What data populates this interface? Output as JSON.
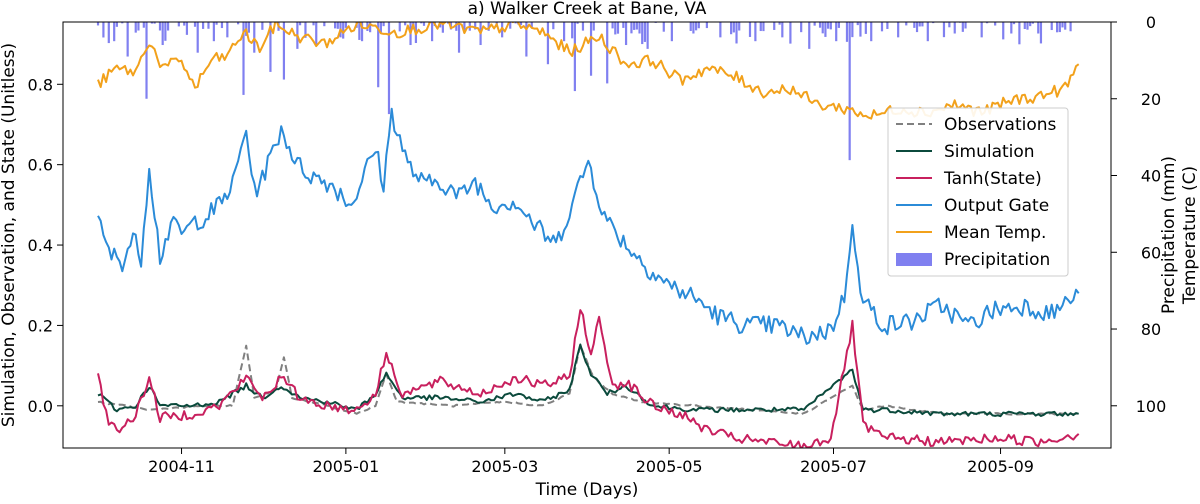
{
  "chart_data": {
    "type": "line",
    "title": "a) Walker Creek at Bane, VA",
    "xlabel": "Time (Days)",
    "ylabel_left": "Simulation, Observation, and State (Unitless)",
    "ylabel_right_1": "Precipitation (mm)",
    "ylabel_right_2": "Temperature (C)",
    "x_start": "2004-10-01",
    "x_end": "2005-09-30",
    "x_range": [
      "2004-09-18",
      "2005-10-12"
    ],
    "x_ticks": [
      {
        "date": "2004-11-01",
        "label": "2004-11"
      },
      {
        "date": "2005-01-01",
        "label": "2005-01"
      },
      {
        "date": "2005-03-01",
        "label": "2005-03"
      },
      {
        "date": "2005-05-01",
        "label": "2005-05"
      },
      {
        "date": "2005-07-01",
        "label": "2005-07"
      },
      {
        "date": "2005-09-01",
        "label": "2005-09"
      }
    ],
    "ylim_left": [
      -0.105,
      0.955
    ],
    "y_ticks_left": [
      0.0,
      0.2,
      0.4,
      0.6,
      0.8
    ],
    "y_tick_labels_left": [
      "0.0",
      "0.2",
      "0.4",
      "0.6",
      "0.8"
    ],
    "ylim_right": [
      111,
      0
    ],
    "y_ticks_right": [
      0,
      20,
      40,
      60,
      80,
      100
    ],
    "y_tick_labels_right": [
      "0",
      "20",
      "40",
      "60",
      "80",
      "100"
    ],
    "legend_position": "right",
    "legend": [
      {
        "name": "Observations",
        "color": "#808080",
        "style": "dashed"
      },
      {
        "name": "Simulation",
        "color": "#0b4a3c",
        "style": "solid"
      },
      {
        "name": "Tanh(State)",
        "color": "#c8205e",
        "style": "solid"
      },
      {
        "name": "Output Gate",
        "color": "#2b8bd8",
        "style": "solid"
      },
      {
        "name": "Mean Temp.",
        "color": "#f2a11b",
        "style": "solid"
      },
      {
        "name": "Precipitation",
        "color": "#8080f0",
        "style": "bar"
      }
    ],
    "series": [
      {
        "name": "Output Gate",
        "color": "#2b8bd8",
        "axis": "left",
        "points": [
          [
            "2004-10-01",
            0.46
          ],
          [
            "2004-10-05",
            0.38
          ],
          [
            "2004-10-10",
            0.36
          ],
          [
            "2004-10-14",
            0.42
          ],
          [
            "2004-10-17",
            0.37
          ],
          [
            "2004-10-20",
            0.6
          ],
          [
            "2004-10-24",
            0.37
          ],
          [
            "2004-10-28",
            0.45
          ],
          [
            "2004-11-02",
            0.43
          ],
          [
            "2004-11-06",
            0.46
          ],
          [
            "2004-11-10",
            0.47
          ],
          [
            "2004-11-15",
            0.5
          ],
          [
            "2004-11-20",
            0.55
          ],
          [
            "2004-11-25",
            0.69
          ],
          [
            "2004-11-28",
            0.53
          ],
          [
            "2004-12-03",
            0.6
          ],
          [
            "2004-12-08",
            0.69
          ],
          [
            "2004-12-14",
            0.6
          ],
          [
            "2004-12-20",
            0.57
          ],
          [
            "2004-12-27",
            0.55
          ],
          [
            "2005-01-03",
            0.5
          ],
          [
            "2005-01-08",
            0.58
          ],
          [
            "2005-01-12",
            0.64
          ],
          [
            "2005-01-15",
            0.55
          ],
          [
            "2005-01-18",
            0.73
          ],
          [
            "2005-01-24",
            0.6
          ],
          [
            "2005-01-30",
            0.55
          ],
          [
            "2005-02-05",
            0.56
          ],
          [
            "2005-02-12",
            0.52
          ],
          [
            "2005-02-18",
            0.56
          ],
          [
            "2005-02-24",
            0.5
          ],
          [
            "2005-03-05",
            0.51
          ],
          [
            "2005-03-12",
            0.45
          ],
          [
            "2005-03-20",
            0.4
          ],
          [
            "2005-03-28",
            0.54
          ],
          [
            "2005-04-01",
            0.61
          ],
          [
            "2005-04-07",
            0.47
          ],
          [
            "2005-04-14",
            0.41
          ],
          [
            "2005-04-22",
            0.35
          ],
          [
            "2005-05-01",
            0.3
          ],
          [
            "2005-05-10",
            0.27
          ],
          [
            "2005-05-20",
            0.22
          ],
          [
            "2005-05-30",
            0.2
          ],
          [
            "2005-06-10",
            0.2
          ],
          [
            "2005-06-20",
            0.17
          ],
          [
            "2005-06-30",
            0.19
          ],
          [
            "2005-07-05",
            0.27
          ],
          [
            "2005-07-08",
            0.47
          ],
          [
            "2005-07-11",
            0.27
          ],
          [
            "2005-07-20",
            0.2
          ],
          [
            "2005-07-30",
            0.21
          ],
          [
            "2005-08-10",
            0.25
          ],
          [
            "2005-08-20",
            0.2
          ],
          [
            "2005-08-30",
            0.24
          ],
          [
            "2005-09-10",
            0.25
          ],
          [
            "2005-09-20",
            0.23
          ],
          [
            "2005-09-30",
            0.28
          ]
        ]
      },
      {
        "name": "Mean Temp.",
        "color": "#f2a11b",
        "axis": "left",
        "points": [
          [
            "2004-10-01",
            0.8
          ],
          [
            "2004-10-08",
            0.84
          ],
          [
            "2004-10-15",
            0.83
          ],
          [
            "2004-10-20",
            0.91
          ],
          [
            "2004-10-25",
            0.84
          ],
          [
            "2004-11-01",
            0.86
          ],
          [
            "2004-11-06",
            0.79
          ],
          [
            "2004-11-12",
            0.86
          ],
          [
            "2004-11-18",
            0.87
          ],
          [
            "2004-11-24",
            0.93
          ],
          [
            "2004-11-30",
            0.89
          ],
          [
            "2004-12-06",
            0.95
          ],
          [
            "2004-12-14",
            0.92
          ],
          [
            "2004-12-24",
            0.9
          ],
          [
            "2005-01-05",
            0.95
          ],
          [
            "2005-01-20",
            0.93
          ],
          [
            "2005-02-05",
            0.95
          ],
          [
            "2005-02-20",
            0.93
          ],
          [
            "2005-03-05",
            0.95
          ],
          [
            "2005-03-15",
            0.93
          ],
          [
            "2005-03-25",
            0.88
          ],
          [
            "2005-04-05",
            0.92
          ],
          [
            "2005-04-15",
            0.85
          ],
          [
            "2005-04-25",
            0.86
          ],
          [
            "2005-05-05",
            0.81
          ],
          [
            "2005-05-15",
            0.84
          ],
          [
            "2005-05-25",
            0.82
          ],
          [
            "2005-06-05",
            0.78
          ],
          [
            "2005-06-15",
            0.79
          ],
          [
            "2005-06-25",
            0.75
          ],
          [
            "2005-07-05",
            0.74
          ],
          [
            "2005-07-15",
            0.72
          ],
          [
            "2005-07-25",
            0.74
          ],
          [
            "2005-08-05",
            0.73
          ],
          [
            "2005-08-15",
            0.75
          ],
          [
            "2005-08-25",
            0.73
          ],
          [
            "2005-09-05",
            0.76
          ],
          [
            "2005-09-15",
            0.77
          ],
          [
            "2005-09-25",
            0.79
          ],
          [
            "2005-09-30",
            0.85
          ]
        ]
      },
      {
        "name": "Observations",
        "color": "#808080",
        "axis": "left",
        "points": [
          [
            "2004-10-01",
            0.01
          ],
          [
            "2004-10-20",
            -0.01
          ],
          [
            "2004-11-10",
            0.0
          ],
          [
            "2004-11-20",
            0.0
          ],
          [
            "2004-11-25",
            0.15
          ],
          [
            "2004-11-28",
            0.02
          ],
          [
            "2004-12-06",
            0.04
          ],
          [
            "2004-12-09",
            0.12
          ],
          [
            "2004-12-12",
            0.02
          ],
          [
            "2004-12-25",
            0.0
          ],
          [
            "2005-01-05",
            -0.02
          ],
          [
            "2005-01-12",
            0.0
          ],
          [
            "2005-01-16",
            0.08
          ],
          [
            "2005-01-20",
            0.01
          ],
          [
            "2005-02-10",
            0.0
          ],
          [
            "2005-03-01",
            0.01
          ],
          [
            "2005-03-15",
            0.0
          ],
          [
            "2005-03-25",
            0.03
          ],
          [
            "2005-03-29",
            0.15
          ],
          [
            "2005-04-03",
            0.07
          ],
          [
            "2005-04-10",
            0.03
          ],
          [
            "2005-04-20",
            0.01
          ],
          [
            "2005-05-10",
            0.0
          ],
          [
            "2005-06-01",
            -0.01
          ],
          [
            "2005-06-20",
            -0.02
          ],
          [
            "2005-07-08",
            0.05
          ],
          [
            "2005-07-12",
            -0.01
          ],
          [
            "2005-07-20",
            0.0
          ],
          [
            "2005-08-10",
            -0.02
          ],
          [
            "2005-09-10",
            -0.02
          ],
          [
            "2005-09-30",
            -0.02
          ]
        ]
      },
      {
        "name": "Simulation",
        "color": "#0b4a3c",
        "axis": "left",
        "points": [
          [
            "2004-10-01",
            0.03
          ],
          [
            "2004-10-08",
            -0.01
          ],
          [
            "2004-10-15",
            0.0
          ],
          [
            "2004-10-20",
            0.05
          ],
          [
            "2004-10-24",
            0.0
          ],
          [
            "2004-11-05",
            0.0
          ],
          [
            "2004-11-15",
            0.01
          ],
          [
            "2004-11-25",
            0.05
          ],
          [
            "2004-12-01",
            0.02
          ],
          [
            "2004-12-08",
            0.05
          ],
          [
            "2004-12-15",
            0.02
          ],
          [
            "2004-12-25",
            0.01
          ],
          [
            "2005-01-05",
            -0.01
          ],
          [
            "2005-01-12",
            0.03
          ],
          [
            "2005-01-16",
            0.08
          ],
          [
            "2005-01-22",
            0.02
          ],
          [
            "2005-02-05",
            0.02
          ],
          [
            "2005-02-20",
            0.01
          ],
          [
            "2005-03-05",
            0.03
          ],
          [
            "2005-03-15",
            0.01
          ],
          [
            "2005-03-25",
            0.04
          ],
          [
            "2005-03-29",
            0.15
          ],
          [
            "2005-04-02",
            0.08
          ],
          [
            "2005-04-08",
            0.03
          ],
          [
            "2005-04-15",
            0.05
          ],
          [
            "2005-04-25",
            0.0
          ],
          [
            "2005-05-10",
            -0.01
          ],
          [
            "2005-06-01",
            -0.01
          ],
          [
            "2005-06-20",
            -0.01
          ],
          [
            "2005-07-08",
            0.09
          ],
          [
            "2005-07-12",
            -0.01
          ],
          [
            "2005-07-20",
            -0.01
          ],
          [
            "2005-08-10",
            -0.02
          ],
          [
            "2005-09-10",
            -0.02
          ],
          [
            "2005-09-30",
            -0.02
          ]
        ]
      },
      {
        "name": "Tanh(State)",
        "color": "#c8205e",
        "axis": "left",
        "points": [
          [
            "2004-10-01",
            0.07
          ],
          [
            "2004-10-05",
            -0.04
          ],
          [
            "2004-10-10",
            -0.06
          ],
          [
            "2004-10-15",
            -0.02
          ],
          [
            "2004-10-20",
            0.07
          ],
          [
            "2004-10-24",
            -0.03
          ],
          [
            "2004-11-05",
            -0.02
          ],
          [
            "2004-11-15",
            0.0
          ],
          [
            "2004-11-25",
            0.07
          ],
          [
            "2004-12-01",
            0.02
          ],
          [
            "2004-12-08",
            0.07
          ],
          [
            "2004-12-15",
            0.02
          ],
          [
            "2004-12-25",
            0.0
          ],
          [
            "2005-01-05",
            -0.01
          ],
          [
            "2005-01-12",
            0.03
          ],
          [
            "2005-01-16",
            0.13
          ],
          [
            "2005-01-22",
            0.03
          ],
          [
            "2005-02-05",
            0.06
          ],
          [
            "2005-02-20",
            0.03
          ],
          [
            "2005-03-05",
            0.07
          ],
          [
            "2005-03-15",
            0.05
          ],
          [
            "2005-03-25",
            0.07
          ],
          [
            "2005-03-29",
            0.25
          ],
          [
            "2005-04-02",
            0.12
          ],
          [
            "2005-04-05",
            0.22
          ],
          [
            "2005-04-10",
            0.05
          ],
          [
            "2005-04-15",
            0.06
          ],
          [
            "2005-04-25",
            0.0
          ],
          [
            "2005-05-05",
            -0.02
          ],
          [
            "2005-05-15",
            -0.06
          ],
          [
            "2005-05-25",
            -0.08
          ],
          [
            "2005-06-05",
            -0.09
          ],
          [
            "2005-06-20",
            -0.1
          ],
          [
            "2005-06-30",
            -0.08
          ],
          [
            "2005-07-08",
            0.2
          ],
          [
            "2005-07-12",
            -0.05
          ],
          [
            "2005-07-20",
            -0.08
          ],
          [
            "2005-08-10",
            -0.09
          ],
          [
            "2005-09-01",
            -0.08
          ],
          [
            "2005-09-15",
            -0.09
          ],
          [
            "2005-09-30",
            -0.07
          ]
        ]
      }
    ],
    "precipitation": {
      "name": "Precipitation",
      "color": "#8080f0",
      "axis": "right",
      "points": [
        [
          "2004-10-07",
          5
        ],
        [
          "2004-10-12",
          9
        ],
        [
          "2004-10-19",
          20
        ],
        [
          "2004-10-25",
          6
        ],
        [
          "2004-11-07",
          8
        ],
        [
          "2004-11-13",
          5
        ],
        [
          "2004-11-18",
          4
        ],
        [
          "2004-11-24",
          19
        ],
        [
          "2004-11-28",
          8
        ],
        [
          "2004-12-04",
          13
        ],
        [
          "2004-12-09",
          15
        ],
        [
          "2004-12-14",
          7
        ],
        [
          "2004-12-21",
          6
        ],
        [
          "2004-12-30",
          4
        ],
        [
          "2005-01-07",
          5
        ],
        [
          "2005-01-13",
          17
        ],
        [
          "2005-01-17",
          24
        ],
        [
          "2005-01-25",
          6
        ],
        [
          "2005-02-02",
          5
        ],
        [
          "2005-02-12",
          8
        ],
        [
          "2005-02-20",
          6
        ],
        [
          "2005-02-28",
          4
        ],
        [
          "2005-03-09",
          9
        ],
        [
          "2005-03-17",
          11
        ],
        [
          "2005-03-23",
          5
        ],
        [
          "2005-03-27",
          18
        ],
        [
          "2005-04-02",
          14
        ],
        [
          "2005-04-08",
          16
        ],
        [
          "2005-04-15",
          6
        ],
        [
          "2005-04-23",
          7
        ],
        [
          "2005-05-02",
          5
        ],
        [
          "2005-05-10",
          3
        ],
        [
          "2005-05-20",
          4
        ],
        [
          "2005-06-02",
          5
        ],
        [
          "2005-06-12",
          4
        ],
        [
          "2005-06-22",
          7
        ],
        [
          "2005-07-02",
          5
        ],
        [
          "2005-07-07",
          36
        ],
        [
          "2005-07-15",
          5
        ],
        [
          "2005-07-25",
          4
        ],
        [
          "2005-08-05",
          5
        ],
        [
          "2005-08-15",
          3
        ],
        [
          "2005-08-25",
          4
        ],
        [
          "2005-09-05",
          3
        ],
        [
          "2005-09-15",
          3
        ],
        [
          "2005-09-25",
          2
        ]
      ]
    }
  }
}
